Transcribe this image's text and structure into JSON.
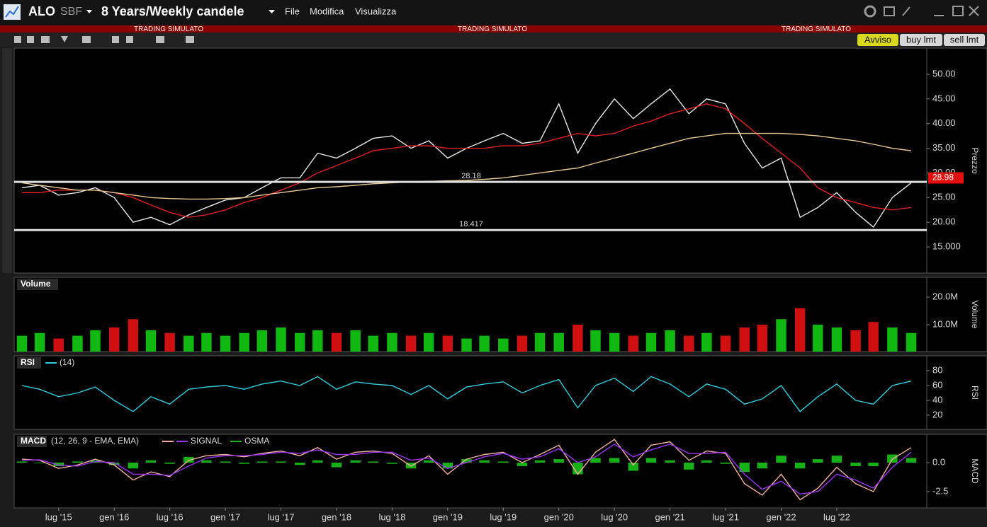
{
  "header": {
    "symbol": "ALO",
    "exchange": "SBF",
    "period": "8 Years/Weekly candele",
    "menu": [
      "File",
      "Modifica",
      "Visualizza"
    ],
    "banner": [
      "TRADING SIMULATO",
      "TRADING SIMULATO",
      "TRADING SIMULATO"
    ],
    "buttons": [
      "Avviso",
      "buy lmt",
      "sell lmt"
    ]
  },
  "chart_data": [
    {
      "type": "line",
      "ylabel": "Prezzo",
      "x": [
        2015.17,
        2015.33,
        2015.5,
        2015.67,
        2015.83,
        2016,
        2016.17,
        2016.33,
        2016.5,
        2016.67,
        2016.83,
        2017,
        2017.17,
        2017.33,
        2017.5,
        2017.67,
        2017.83,
        2018,
        2018.17,
        2018.33,
        2018.5,
        2018.67,
        2018.83,
        2019,
        2019.17,
        2019.33,
        2019.5,
        2019.67,
        2019.83,
        2020,
        2020.17,
        2020.33,
        2020.5,
        2020.67,
        2020.83,
        2021,
        2021.17,
        2021.33,
        2021.5,
        2021.67,
        2021.83,
        2022,
        2022.17,
        2022.33,
        2022.5,
        2022.67,
        2022.83,
        2023,
        2023.17
      ],
      "series": [
        {
          "color": "#e8e8e8",
          "values": [
            27,
            27.5,
            25.5,
            26,
            27,
            25,
            20,
            21,
            19.5,
            21.5,
            23,
            24.5,
            25,
            27,
            29,
            29,
            34,
            33,
            35,
            37,
            37.5,
            35,
            36.5,
            33,
            35,
            36.5,
            38,
            36,
            36.5,
            44,
            34,
            40,
            45,
            41,
            44,
            47,
            42,
            45,
            44,
            36,
            31,
            33,
            21,
            23,
            26,
            22,
            19,
            25,
            28
          ]
        },
        {
          "color": "#e02020",
          "values": [
            26,
            26,
            26.5,
            26.5,
            26.5,
            26,
            25,
            23.5,
            22,
            21,
            21.5,
            22.5,
            24,
            25,
            26.5,
            28,
            30,
            31.5,
            33,
            34.5,
            35,
            35.5,
            35.5,
            35,
            35,
            35,
            35.5,
            35.5,
            36,
            37,
            38,
            37.5,
            38,
            39.5,
            40.5,
            42,
            43,
            44,
            43,
            40,
            37,
            34,
            31,
            27,
            25,
            24,
            23,
            22.5,
            23
          ]
        },
        {
          "color": "#e8c890",
          "values": [
            28,
            27.5,
            27,
            26.5,
            26.5,
            26,
            25.5,
            25,
            24.8,
            24.7,
            24.7,
            24.8,
            25,
            25.5,
            26,
            26.5,
            27,
            27.2,
            27.5,
            27.8,
            28,
            28.2,
            28.3,
            28.4,
            28.5,
            28.7,
            29,
            29.5,
            30,
            30.5,
            31,
            32,
            33,
            34,
            35,
            36,
            37,
            37.5,
            38,
            38,
            38,
            38,
            37.8,
            37.5,
            37,
            36.5,
            35.8,
            35,
            34.5
          ]
        }
      ],
      "levels": [
        28.18,
        18.417
      ],
      "last": 28.98,
      "xlim": [
        2015.1,
        2023.31
      ],
      "ylim": [
        9.7,
        55.3
      ],
      "yticks": [
        {
          "value": 50,
          "label": "50.00"
        },
        {
          "value": 45,
          "label": "45.00"
        },
        {
          "value": 40,
          "label": "40.00"
        },
        {
          "value": 35,
          "label": "35.00"
        },
        {
          "value": 30,
          "label": "30.00"
        },
        {
          "value": 25,
          "label": "25.00"
        },
        {
          "value": 20,
          "label": "20.00"
        },
        {
          "value": 15,
          "label": "15.000"
        }
      ]
    },
    {
      "type": "bar",
      "title": "Volume",
      "ylabel": "Volume",
      "x": [
        2015.17,
        2015.33,
        2015.5,
        2015.67,
        2015.83,
        2016,
        2016.17,
        2016.33,
        2016.5,
        2016.67,
        2016.83,
        2017,
        2017.17,
        2017.33,
        2017.5,
        2017.67,
        2017.83,
        2018,
        2018.17,
        2018.33,
        2018.5,
        2018.67,
        2018.83,
        2019,
        2019.17,
        2019.33,
        2019.5,
        2019.67,
        2019.83,
        2020,
        2020.17,
        2020.33,
        2020.5,
        2020.67,
        2020.83,
        2021,
        2021.17,
        2021.33,
        2021.5,
        2021.67,
        2021.83,
        2022,
        2022.17,
        2022.33,
        2022.5,
        2022.67,
        2022.83,
        2023,
        2023.17
      ],
      "values": [
        6000000,
        7000000,
        5000000,
        6000000,
        8000000,
        9000000,
        12000000,
        8000000,
        7000000,
        6000000,
        7000000,
        6000000,
        7000000,
        8000000,
        9000000,
        7000000,
        8000000,
        7000000,
        8000000,
        6000000,
        7000000,
        6000000,
        7000000,
        6000000,
        5000000,
        6000000,
        5000000,
        6000000,
        7000000,
        7000000,
        10000000,
        8000000,
        7000000,
        6000000,
        7000000,
        8000000,
        6000000,
        7000000,
        6000000,
        9000000,
        10000000,
        12000000,
        16000000,
        10000000,
        9000000,
        8000000,
        11000000,
        9000000,
        7000000
      ],
      "colors": [
        "#12b812",
        "#12b812",
        "#d01010",
        "#12b812",
        "#12b812",
        "#d01010",
        "#d01010",
        "#12b812",
        "#d01010",
        "#12b812",
        "#12b812",
        "#12b812",
        "#12b812",
        "#12b812",
        "#12b812",
        "#12b812",
        "#12b812",
        "#d01010",
        "#12b812",
        "#12b812",
        "#12b812",
        "#d01010",
        "#12b812",
        "#d01010",
        "#12b812",
        "#12b812",
        "#12b812",
        "#d01010",
        "#12b812",
        "#12b812",
        "#d01010",
        "#12b812",
        "#12b812",
        "#d01010",
        "#12b812",
        "#12b812",
        "#d01010",
        "#12b812",
        "#d01010",
        "#d01010",
        "#d01010",
        "#12b812",
        "#d01010",
        "#12b812",
        "#12b812",
        "#d01010",
        "#d01010",
        "#12b812",
        "#12b812"
      ],
      "xlim": [
        2015.1,
        2023.31
      ],
      "ylim": [
        260000,
        27200000
      ],
      "yticks": [
        {
          "value": 20000000,
          "label": "20.0M"
        },
        {
          "value": 10000000,
          "label": "10.0M"
        }
      ]
    },
    {
      "type": "line",
      "title": "RSI",
      "params": "(14)",
      "ylabel": "RSI",
      "x": [
        2015.17,
        2015.33,
        2015.5,
        2015.67,
        2015.83,
        2016,
        2016.17,
        2016.33,
        2016.5,
        2016.67,
        2016.83,
        2017,
        2017.17,
        2017.33,
        2017.5,
        2017.67,
        2017.83,
        2018,
        2018.17,
        2018.33,
        2018.5,
        2018.67,
        2018.83,
        2019,
        2019.17,
        2019.33,
        2019.5,
        2019.67,
        2019.83,
        2020,
        2020.17,
        2020.33,
        2020.5,
        2020.67,
        2020.83,
        2021,
        2021.17,
        2021.33,
        2021.5,
        2021.67,
        2021.83,
        2022,
        2022.17,
        2022.33,
        2022.5,
        2022.67,
        2022.83,
        2023,
        2023.17
      ],
      "series": [
        {
          "color": "#33ccdd",
          "values": [
            60,
            55,
            45,
            50,
            58,
            40,
            25,
            45,
            35,
            55,
            58,
            60,
            55,
            62,
            66,
            60,
            72,
            55,
            65,
            62,
            60,
            48,
            60,
            42,
            58,
            62,
            65,
            50,
            60,
            68,
            30,
            60,
            70,
            52,
            72,
            62,
            45,
            62,
            55,
            35,
            42,
            60,
            25,
            45,
            62,
            40,
            35,
            60,
            66
          ]
        }
      ],
      "xlim": [
        2015.1,
        2023.31
      ],
      "ylim": [
        1,
        100
      ],
      "yticks": [
        80,
        60,
        40,
        20
      ]
    },
    {
      "type": "line",
      "title": "MACD",
      "params": "(12, 26, 9 - EMA, EMA)",
      "ylabel": "MACD",
      "x": [
        2015.17,
        2015.33,
        2015.5,
        2015.67,
        2015.83,
        2016,
        2016.17,
        2016.33,
        2016.5,
        2016.67,
        2016.83,
        2017,
        2017.17,
        2017.33,
        2017.5,
        2017.67,
        2017.83,
        2018,
        2018.17,
        2018.33,
        2018.5,
        2018.67,
        2018.83,
        2019,
        2019.17,
        2019.33,
        2019.5,
        2019.67,
        2019.83,
        2020,
        2020.17,
        2020.33,
        2020.5,
        2020.67,
        2020.83,
        2021,
        2021.17,
        2021.33,
        2021.5,
        2021.67,
        2021.83,
        2022,
        2022.17,
        2022.33,
        2022.5,
        2022.67,
        2022.83,
        2023,
        2023.17
      ],
      "series": [
        {
          "type": "bar",
          "name": "OSMA",
          "color": "#17b017",
          "values": [
            0.1,
            -0.05,
            -0.3,
            0.1,
            0.2,
            -0.2,
            -0.5,
            0.2,
            -0.1,
            0.5,
            0.2,
            0.1,
            -0.1,
            0.1,
            0.1,
            -0.2,
            0.2,
            -0.4,
            0.2,
            0.1,
            -0.1,
            -0.5,
            0.2,
            -0.5,
            0.3,
            0.2,
            0.1,
            -0.3,
            0.2,
            0.3,
            -1,
            0.4,
            0.4,
            -0.7,
            0.4,
            0.2,
            -0.6,
            0.2,
            -0.1,
            -0.8,
            -0.5,
            0.6,
            -0.5,
            0.3,
            0.6,
            -0.3,
            -0.3,
            0.7,
            0.4
          ]
        },
        {
          "color": "#f0b0a0",
          "values": [
            0.3,
            0.2,
            -0.5,
            -0.2,
            0.3,
            -0.2,
            -1.5,
            -0.8,
            -1.2,
            0.2,
            0.6,
            0.7,
            0.5,
            0.8,
            1,
            0.6,
            1.3,
            0.3,
            0.9,
            1,
            0.8,
            -0.3,
            0.6,
            -1,
            0.3,
            0.7,
            0.9,
            0,
            0.7,
            1.5,
            -1,
            0.9,
            2,
            -0.2,
            1.5,
            1.8,
            0.2,
            1,
            0.8,
            -1.8,
            -2.8,
            -1,
            -3.2,
            -2.2,
            -0.4,
            -1.8,
            -2.5,
            0.3,
            1.3
          ]
        },
        {
          "name": "SIGNAL",
          "color": "#9933ee",
          "values": [
            0.2,
            0.25,
            -0.2,
            -0.3,
            0.1,
            0,
            -1,
            -1,
            -1.1,
            -0.3,
            0.4,
            0.6,
            0.6,
            0.7,
            0.9,
            0.8,
            1.1,
            0.7,
            0.7,
            0.9,
            0.9,
            0.2,
            0.4,
            -0.5,
            0,
            0.5,
            0.8,
            0.3,
            0.5,
            1.2,
            0,
            0.5,
            1.6,
            0.5,
            1.1,
            1.6,
            0.8,
            0.8,
            0.9,
            -1,
            -2.3,
            -1.6,
            -2.7,
            -2.5,
            -1,
            -1.5,
            -2.2,
            -0.4,
            0.9
          ]
        }
      ],
      "xlim": [
        2015.1,
        2023.31
      ],
      "ylim": [
        -3.9,
        2.44
      ],
      "yticks": [
        {
          "value": 0,
          "label": "0.0"
        },
        -2.5
      ],
      "xticks": [
        {
          "value": 2015.5,
          "label": "lug '15"
        },
        {
          "value": 2016,
          "label": "gen '16"
        },
        {
          "value": 2016.5,
          "label": "lug '16"
        },
        {
          "value": 2017,
          "label": "gen '17"
        },
        {
          "value": 2017.5,
          "label": "lug '17"
        },
        {
          "value": 2018,
          "label": "gen '18"
        },
        {
          "value": 2018.5,
          "label": "lug '18"
        },
        {
          "value": 2019,
          "label": "gen '19"
        },
        {
          "value": 2019.5,
          "label": "lug '19"
        },
        {
          "value": 2020,
          "label": "gen '20"
        },
        {
          "value": 2020.5,
          "label": "lug '20"
        },
        {
          "value": 2021,
          "label": "gen '21"
        },
        {
          "value": 2021.5,
          "label": "lug '21"
        },
        {
          "value": 2022,
          "label": "gen '22"
        },
        {
          "value": 2022.5,
          "label": "lug '22"
        }
      ]
    }
  ]
}
